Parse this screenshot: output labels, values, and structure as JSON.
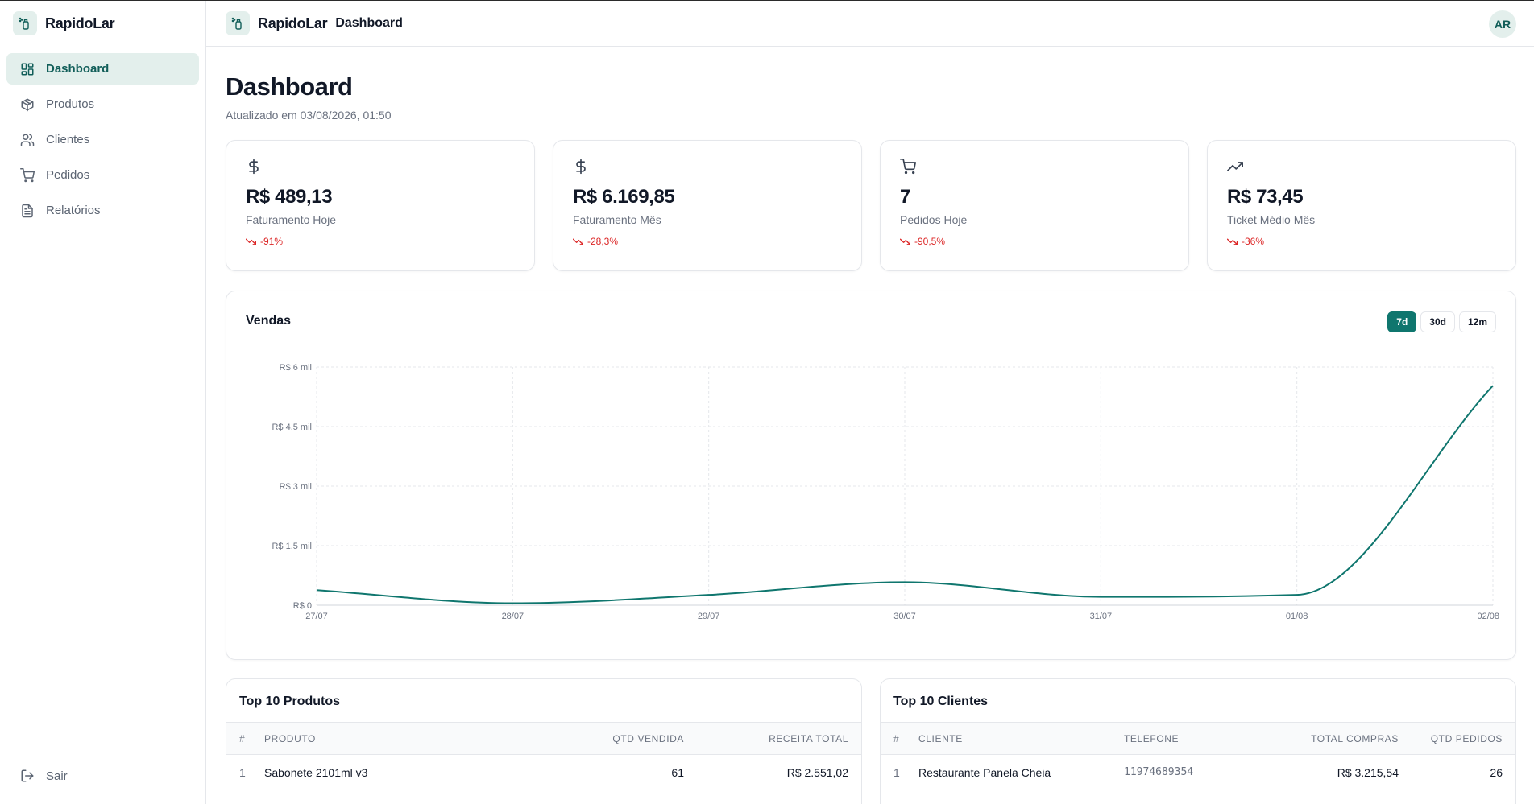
{
  "app": {
    "name": "RapidoLar"
  },
  "sidebar": {
    "items": [
      {
        "label": "Dashboard",
        "icon": "grid-icon",
        "active": true
      },
      {
        "label": "Produtos",
        "icon": "box-icon"
      },
      {
        "label": "Clientes",
        "icon": "users-icon"
      },
      {
        "label": "Pedidos",
        "icon": "cart-icon"
      },
      {
        "label": "Relatórios",
        "icon": "file-text-icon"
      }
    ],
    "logout": "Sair"
  },
  "header": {
    "crumb": "Dashboard",
    "avatar": "AR"
  },
  "page": {
    "title": "Dashboard",
    "subtitle": "Atualizado em 03/08/2026, 01:50"
  },
  "kpis": [
    {
      "icon": "dollar-icon",
      "value": "R$ 489,13",
      "label": "Faturamento Hoje",
      "trend": "-91%"
    },
    {
      "icon": "dollar-icon",
      "value": "R$ 6.169,85",
      "label": "Faturamento Mês",
      "trend": "-28,3%"
    },
    {
      "icon": "cart-icon",
      "value": "7",
      "label": "Pedidos Hoje",
      "trend": "-90,5%"
    },
    {
      "icon": "trending-up-icon",
      "value": "R$ 73,45",
      "label": "Ticket Médio Mês",
      "trend": "-36%"
    }
  ],
  "colors": {
    "accent": "#0f766e",
    "negative": "#dc2626"
  },
  "sales": {
    "title": "Vendas",
    "ranges": [
      {
        "label": "7d",
        "active": true
      },
      {
        "label": "30d"
      },
      {
        "label": "12m"
      }
    ]
  },
  "chart_data": {
    "type": "line",
    "title": "Vendas",
    "categories": [
      "27/07",
      "28/07",
      "29/07",
      "30/07",
      "31/07",
      "01/08",
      "02/08"
    ],
    "series": [
      {
        "values": [
          380,
          50,
          260,
          580,
          210,
          260,
          5530
        ]
      }
    ],
    "ylim": [
      0,
      6000
    ],
    "yticks": [
      0,
      1500,
      3000,
      4500,
      6000
    ],
    "ytick_labels": [
      "R$ 0",
      "R$ 1,5 mil",
      "R$ 3 mil",
      "R$ 4,5 mil",
      "R$ 6 mil"
    ],
    "grid": true
  },
  "top_products": {
    "title": "Top 10 Produtos",
    "headers": [
      "#",
      "PRODUTO",
      "QTD VENDIDA",
      "RECEITA TOTAL"
    ],
    "rows": [
      [
        "1",
        "Sabonete 2101ml v3",
        "61",
        "R$ 2.551,02"
      ]
    ]
  },
  "top_clients": {
    "title": "Top 10 Clientes",
    "headers": [
      "#",
      "CLIENTE",
      "TELEFONE",
      "TOTAL COMPRAS",
      "QTD PEDIDOS"
    ],
    "rows": [
      [
        "1",
        "Restaurante Panela Cheia",
        "11974689354",
        "R$ 3.215,54",
        "26"
      ]
    ]
  }
}
